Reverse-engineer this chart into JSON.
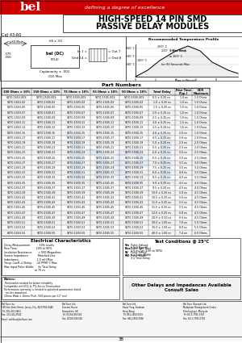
{
  "title_line1": "HIGH-SPEED 14 PIN SMD",
  "title_line2": "PASSIVE DELAY MODULES",
  "cat_number": "Cat 43-R0",
  "bel_tagline": "defining a degree of excellence",
  "header_bg": "#cc0000",
  "table_header_row": [
    "100 Ohms ± 10%",
    "150 Ohms ± 10%",
    "75 Ohms ± 10%",
    "93 Ohms ± 10%",
    "50 Ohms ± 10%",
    "Total Delay",
    "Rise Time\n(Typ.)",
    "DCR\nMaximum"
  ],
  "part_numbers_section": "Part Numbers",
  "elec_char_title": "Electrical Characteristics",
  "test_cond_title": "Test Conditions @ 25°C",
  "temp_profile_title": "Recommended Temperature Profile",
  "other_delays_text": "Other Delays and Impedances Available\nConsult Sales",
  "watermark_color": "#aaccee",
  "table_rows": [
    [
      "S470-1453-00S",
      "S470-1500-00S",
      "S470-1503-00S",
      "S470-1505-00S",
      "S470-1500-00S",
      "0.5 ± 0.25 ns",
      "1.0 ns",
      "1.0 Ohms"
    ],
    [
      "S470-1453-02",
      "S470-1500-02",
      "S470-1503-02",
      "S470-1505-02",
      "S470-1500-02",
      "1.0 ± 0.25 ns",
      "1.0 ns",
      "1.0 Ohms"
    ],
    [
      "S470-1453-05",
      "S470-1500-05",
      "S470-1503-05",
      "S470-1505-05",
      "S470-1500-05",
      "1.5 ± 0.25 ns",
      "1.0 ns",
      "1.0 Ohms"
    ],
    [
      "S470-1453-07",
      "S470-1500-07",
      "S470-1503-07",
      "S470-1505-07",
      "S470-1500-07",
      "2.0 ± 0.25 ns",
      "1.0 ns",
      "1.0 Ohms"
    ],
    [
      "S470-1453-09",
      "S470-1500-09",
      "S470-1503-09",
      "S470-1505-09",
      "S470-1500-09",
      "2.5 ± 0.25 ns",
      "1.0 ns",
      "1.0 Ohms"
    ],
    [
      "S470-1453-11",
      "S470-1500-11",
      "S470-1503-11",
      "S470-1505-11",
      "S470-1500-11",
      "3.0 ± 0.25 ns",
      "1.5 ns",
      "1.0 Ohms"
    ],
    [
      "S470-1453-13",
      "S470-1500-13",
      "S470-1503-13",
      "S470-1505-13",
      "S470-1500-13",
      "3.5 ± 0.25 ns",
      "1.5 ns",
      "1.0 Ohms"
    ],
    [
      "S470-1453-15",
      "S470-1500-15",
      "S470-1503-15",
      "S470-1505-15",
      "S470-1500-15",
      "4.0 ± 0.25 ns",
      "2.0 ns",
      "1.0 Ohms"
    ],
    [
      "S470-1453-17",
      "S470-1500-17",
      "S470-1503-17",
      "S470-1505-17",
      "S470-1500-17",
      "4.5 ± 0.25 ns",
      "2.0 ns",
      "1.0 Ohms"
    ],
    [
      "S470-1453-19",
      "S470-1500-19",
      "S470-1503-19",
      "S470-1505-19",
      "S470-1500-19",
      "5.0 ± 0.25 ns",
      "2.5 ns",
      "2.0 Ohms"
    ],
    [
      "S470-1453-21",
      "S470-1500-21",
      "S470-1503-21",
      "S470-1505-21",
      "S470-1500-21",
      "5.5 ± 0.25 ns",
      "2.5 ns",
      "2.0 Ohms"
    ],
    [
      "S470-1453-23",
      "S470-1500-23",
      "S470-1503-23",
      "S470-1505-23",
      "S470-1500-23",
      "6.0 ± 0.25 ns",
      "3.0 ns",
      "2.5 Ohms"
    ],
    [
      "S470-1453-25",
      "S470-1500-25",
      "S470-1503-25",
      "S470-1505-25",
      "S470-1500-25",
      "6.5 ± 0.25 ns",
      "3.0 ns",
      "2.5 Ohms"
    ],
    [
      "S470-1453-27",
      "S470-1500-27",
      "S470-1503-27",
      "S470-1505-27",
      "S470-1500-27",
      "7.0 ± 0.25 ns",
      "3.5 ns",
      "3.0 Ohms"
    ],
    [
      "S470-1453-29",
      "S470-1500-29",
      "S470-1503-29",
      "S470-1505-29",
      "S470-1500-29",
      "7.5 ± 0.25 ns",
      "3.5 ns",
      "3.0 Ohms"
    ],
    [
      "S470-1453-31",
      "S470-1500-31",
      "S470-1503-31",
      "S470-1505-31",
      "S470-1500-31",
      "8.0 ± 0.25 ns",
      "4.0 ns",
      "3.5 Ohms"
    ],
    [
      "S470-1453-33",
      "S470-1500-33",
      "S470-1503-33",
      "S470-1505-33",
      "S470-1500-33",
      "8.5 ± 0.25 ns",
      "4.0 ns",
      "3.5 Ohms"
    ],
    [
      "S470-1453-35",
      "S470-1500-35",
      "S470-1503-35",
      "S470-1505-35",
      "S470-1500-35",
      "9.0 ± 0.25 ns",
      "4.5 ns",
      "4.0 Ohms"
    ],
    [
      "S470-1453-37",
      "S470-1500-37",
      "S470-1503-37",
      "S470-1505-37",
      "S470-1500-37",
      "9.5 ± 0.25 ns",
      "4.5 ns",
      "4.0 Ohms"
    ],
    [
      "S470-1453-39",
      "S470-1500-39",
      "S470-1503-39",
      "S470-1505-39",
      "S470-1500-39",
      "10.0 ± 0.25 ns",
      "5.0 ns",
      "4.5 Ohms"
    ],
    [
      "S470-1453-41",
      "S470-1500-41",
      "S470-1503-41",
      "S470-1505-41",
      "S470-1500-41",
      "10.5 ± 0.25 ns",
      "5.0 ns",
      "4.5 Ohms"
    ],
    [
      "S470-1453-43",
      "S470-1500-43",
      "S470-1503-43",
      "S470-1505-43",
      "S470-1500-43",
      "11.0 ± 0.25 ns",
      "5.5 ns",
      "4.5 Ohms"
    ],
    [
      "S470-1453-45",
      "S470-1500-45",
      "S470-1503-45",
      "S470-1505-45",
      "S470-1500-45",
      "11.5 ± 0.25 ns",
      "5.5 ns",
      "4.5 Ohms"
    ],
    [
      "S470-1453-47",
      "S470-1500-47",
      "S470-1503-47",
      "S470-1505-47",
      "S470-1500-47",
      "12.0 ± 0.25 ns",
      "6.0 ns",
      "4.5 Ohms"
    ],
    [
      "S470-1453-49",
      "S470-1500-49",
      "S470-1503-49",
      "S470-1505-49",
      "S470-1500-49",
      "20.0 ± 0.50 ns",
      "6.5 ns",
      "4.5 Ohms"
    ],
    [
      "S470-1453-51",
      "S470-1500-51",
      "S470-1503-51",
      "S470-1505-51",
      "S470-1500-51",
      "30.0 ± 1.00 ns",
      "7.0 ns",
      "5.0 Ohms"
    ],
    [
      "S470-1453-53",
      "S470-1500-53",
      "S470-1503-53",
      "S470-1505-53",
      "S470-1500-53",
      "35.0 ± 1.00 ns",
      "8.0 ns",
      "5.5 Ohms"
    ],
    [
      "S470-1453-55",
      "S470-1500-55",
      "S470-1503-55",
      "S470-1505-55",
      "S470-1500-55",
      "40.0 ± 1.00 ns",
      "7.4 ns",
      "6.0 Ohms"
    ]
  ],
  "elec_items": [
    [
      "Delay Measurement",
      "50% Levels"
    ],
    [
      "Rise Time:",
      "10% to 90%"
    ],
    [
      "Insulation Resistance:",
      "> 500 Megaohms"
    ],
    [
      "Source Impedance:",
      "Matched Line Impedance"
    ],
    [
      "Inductance:",
      "1.0 mH Max"
    ],
    [
      "Temperature Coefficient of",
      ""
    ],
    [
      "  Delay:",
      "-10 PPM/°C Max"
    ],
    [
      "Maximum Input Pulse Width:",
      "3 x Total Delay or 75 ns"
    ]
  ],
  "test_items": [
    [
      "Vin",
      "Pulse Voltage",
      "1 Volt Typical"
    ],
    [
      "Rise",
      "Pulse Rise Time",
      "3.5 ns Typ (10% to 90%)"
    ],
    [
      "5V",
      "Pulse Period",
      "4 x Pulse Width"
    ],
    [
      "PW",
      "Pulse Width",
      "3 x Total Delay"
    ]
  ],
  "notes": [
    "Termination needed for better reliability",
    "Compatible with ECL & TTL Series Termination",
    "Performance warranty is limited to specified parameters listed",
    "  on this datasheet",
    "10mm Wide x 16mm Pitch, 500 pieces per 13\" reel"
  ],
  "footer_addresses": [
    "Bel Fuse Inc.\n198 Van Vorst Street, Jersey City, NJ 07302-9440\nTel: 201-432-0463\nFax: 201-432-9542\nEmail: belifuse@belfuse.com",
    "Bel Fuse Ltd.\nStevent House\nHampshire, UK\nTel: 01256-816328\nFax: 01256-816316",
    "Bel Fuse Ltd.\nKwun Tong, Kowloon\nHong Kong\nTel: 852-2950-5515\nFax: 852-2950-5556",
    "Bel Fuse (Europe) Ltd.\nMalaysian Management Centre\nPetaling Jaya, Malaysia\nTel: 60-3-7781-0720\nFax: 60-3-7781-0729"
  ],
  "page_num": "38"
}
